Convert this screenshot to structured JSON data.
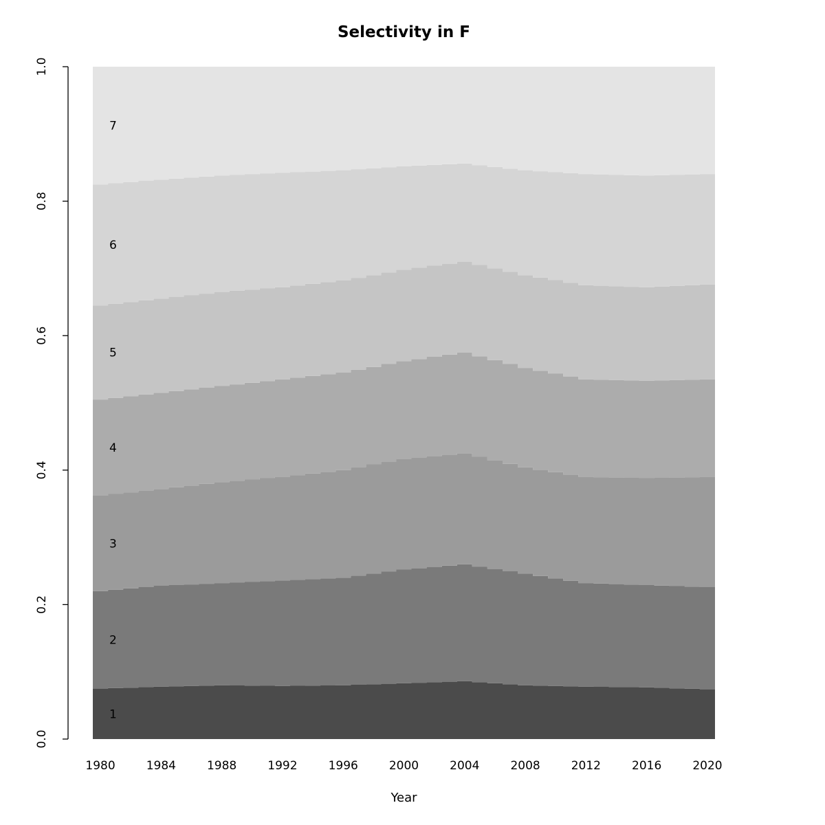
{
  "chart_data": {
    "type": "area",
    "stacked": true,
    "title": "Selectivity in F",
    "xlabel": "Year",
    "ylabel": "",
    "x_start": 1980,
    "x_end": 2020,
    "sample_years": [
      1980,
      1984,
      1988,
      1992,
      1996,
      2000,
      2004,
      2008,
      2012,
      2016,
      2020
    ],
    "x_tick_labels": [
      "1980",
      "1984",
      "1988",
      "1992",
      "1996",
      "2000",
      "2004",
      "2008",
      "2012",
      "2016",
      "2020"
    ],
    "y_ticks": [
      0,
      0.2,
      0.4,
      0.6,
      0.8,
      1.0
    ],
    "y_tick_labels": [
      "0.0",
      "0.2",
      "0.4",
      "0.6",
      "0.8",
      "1.0"
    ],
    "ylim": [
      0,
      1
    ],
    "legend": "none",
    "grid": false,
    "series": [
      {
        "name": "1",
        "color": "#4b4b4b",
        "values": [
          0.075,
          0.078,
          0.08,
          0.079,
          0.08,
          0.083,
          0.086,
          0.08,
          0.078,
          0.077,
          0.074
        ]
      },
      {
        "name": "2",
        "color": "#7a7a7a",
        "values": [
          0.145,
          0.15,
          0.152,
          0.157,
          0.16,
          0.169,
          0.174,
          0.166,
          0.154,
          0.152,
          0.152
        ]
      },
      {
        "name": "3",
        "color": "#9b9b9b",
        "values": [
          0.142,
          0.144,
          0.15,
          0.154,
          0.16,
          0.165,
          0.165,
          0.158,
          0.158,
          0.159,
          0.164
        ]
      },
      {
        "name": "4",
        "color": "#acacac",
        "values": [
          0.143,
          0.143,
          0.143,
          0.145,
          0.145,
          0.145,
          0.15,
          0.148,
          0.145,
          0.145,
          0.145
        ]
      },
      {
        "name": "5",
        "color": "#c5c5c5",
        "values": [
          0.14,
          0.14,
          0.14,
          0.137,
          0.137,
          0.136,
          0.135,
          0.138,
          0.14,
          0.139,
          0.141
        ]
      },
      {
        "name": "6",
        "color": "#d5d5d5",
        "values": [
          0.18,
          0.177,
          0.173,
          0.17,
          0.164,
          0.154,
          0.146,
          0.156,
          0.165,
          0.166,
          0.164
        ]
      },
      {
        "name": "7",
        "color": "#e4e4e4",
        "values": [
          0.175,
          0.168,
          0.162,
          0.158,
          0.154,
          0.148,
          0.144,
          0.154,
          0.16,
          0.162,
          0.16
        ]
      }
    ]
  }
}
